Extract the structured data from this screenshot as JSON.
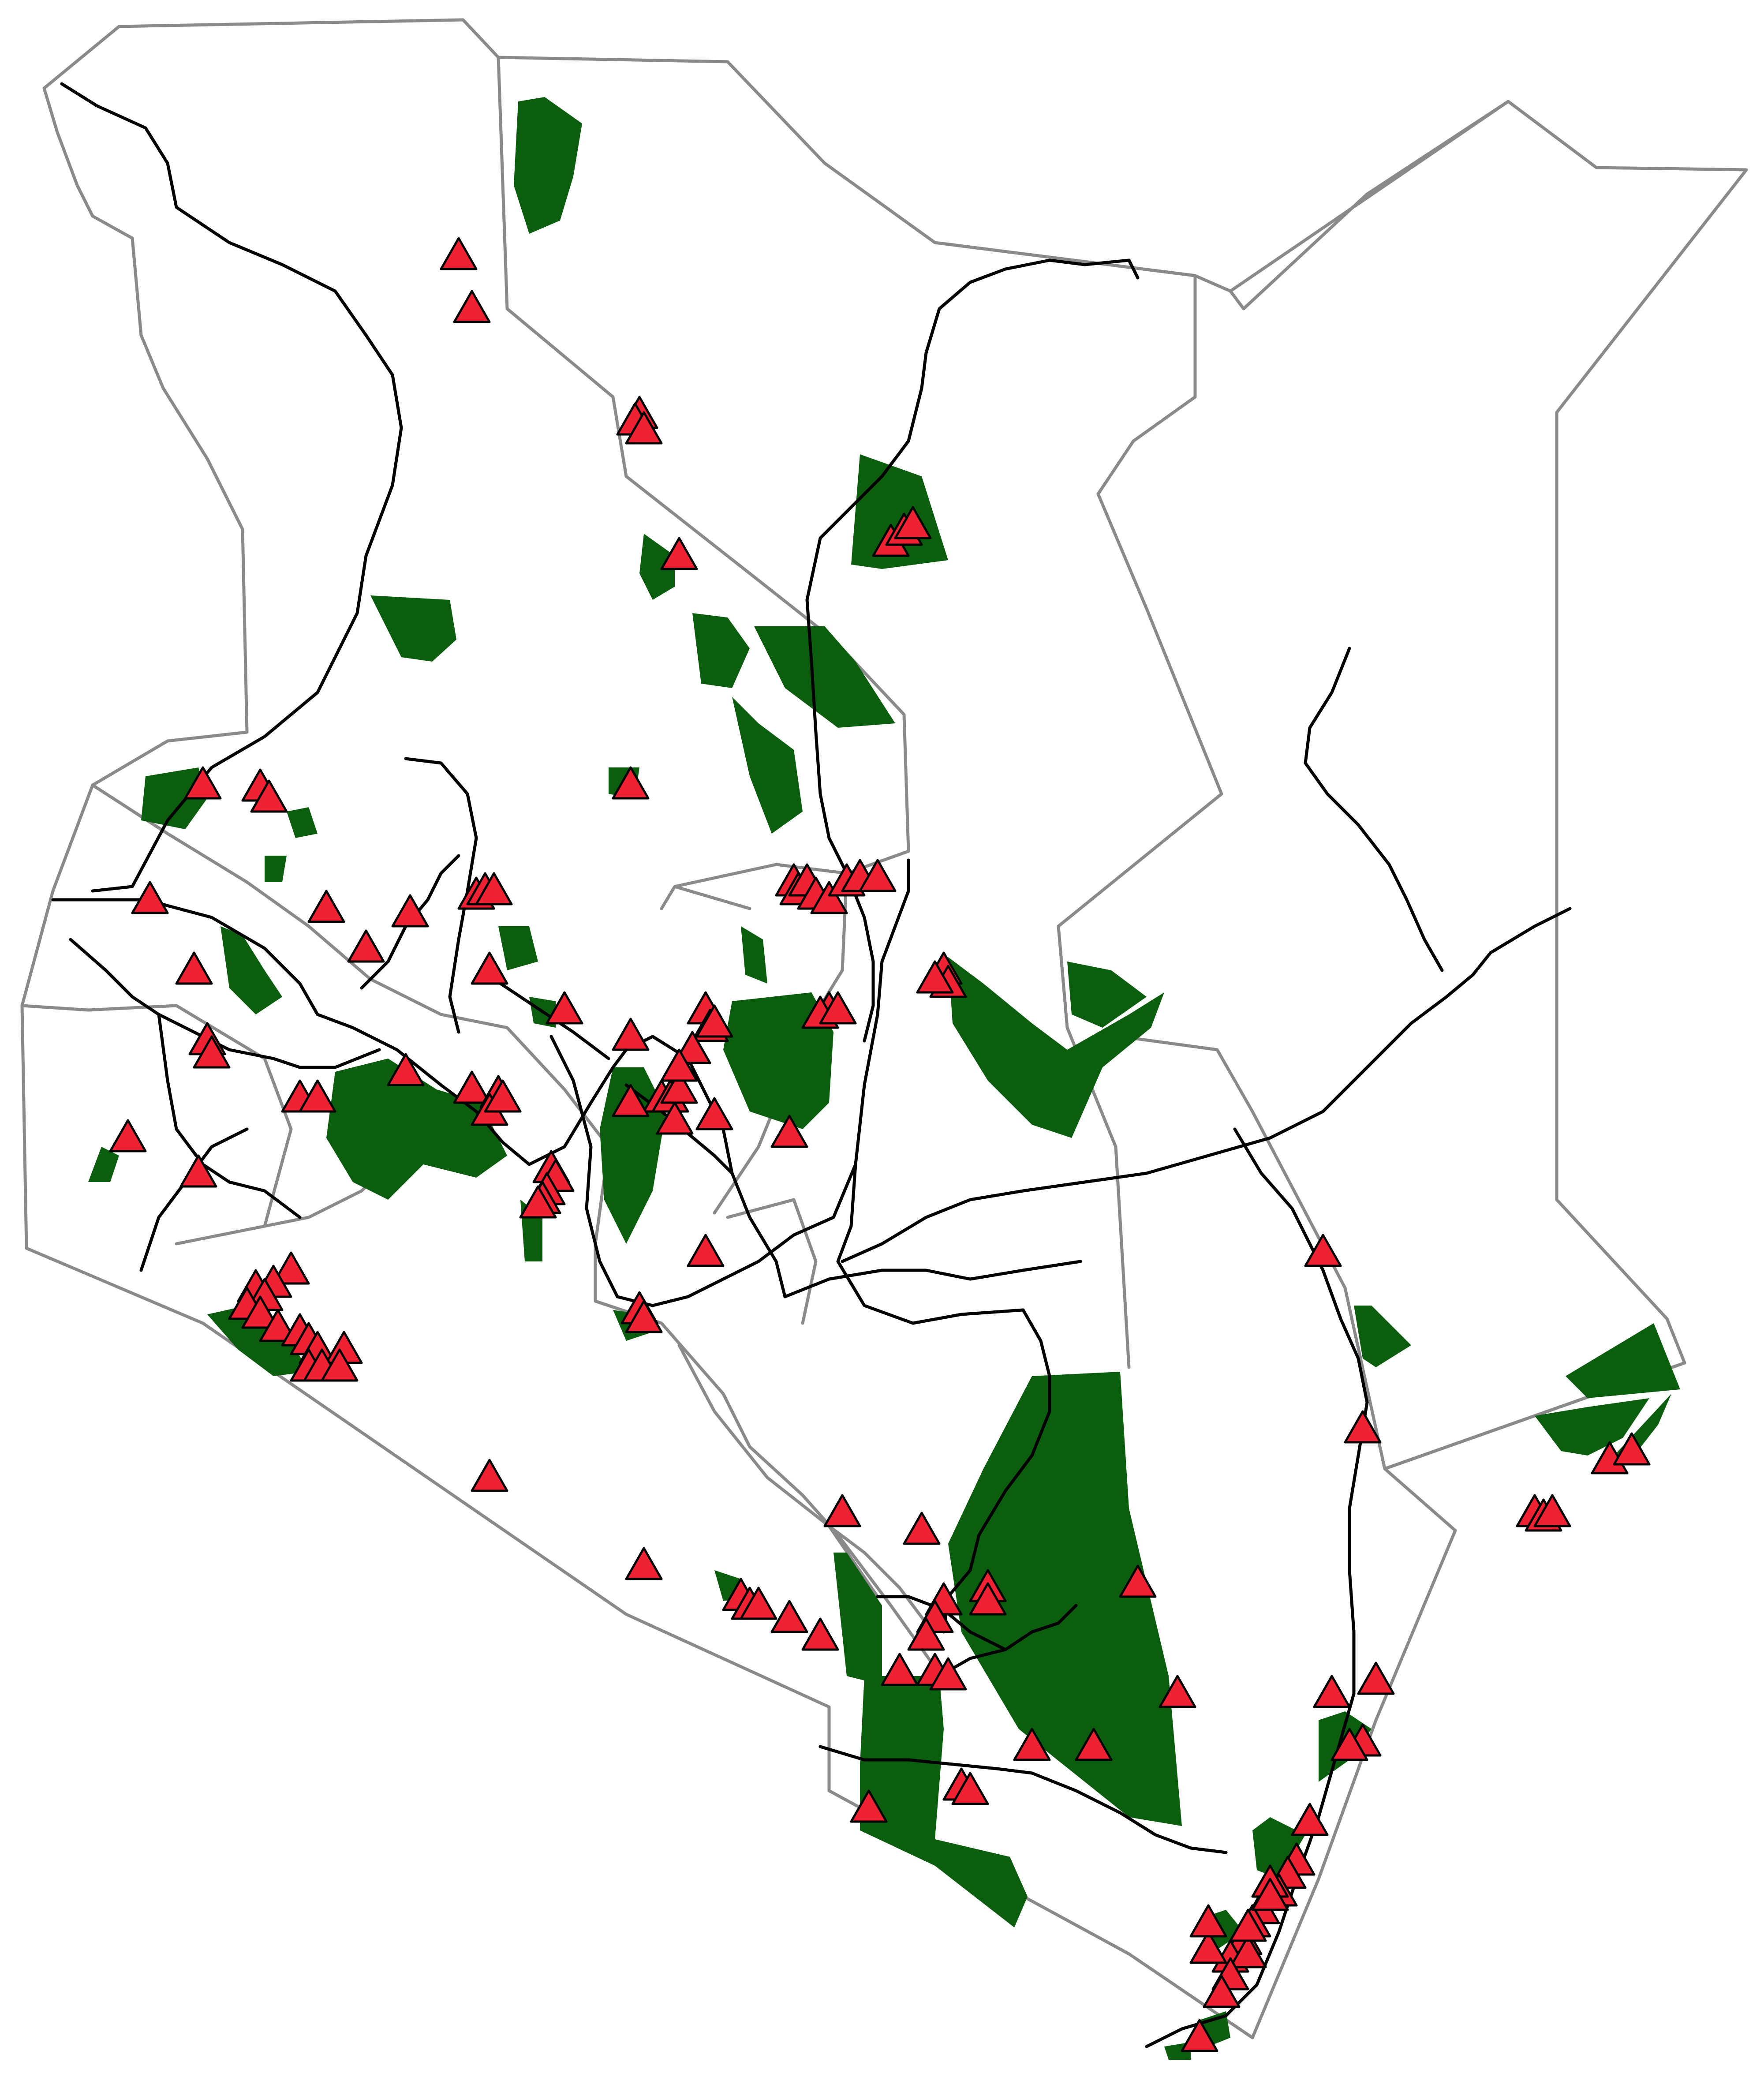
{
  "map": {
    "colors": {
      "protected_area": "#0b5e0e",
      "site_marker": "#ee2233",
      "boundary": "#8a8a8a",
      "road": "#000000",
      "background": "#ffffff"
    },
    "layers": [
      "boundaries",
      "protected-areas",
      "roads",
      "site-markers"
    ],
    "marker_symbol": "red-triangle",
    "site_count": 186
  }
}
